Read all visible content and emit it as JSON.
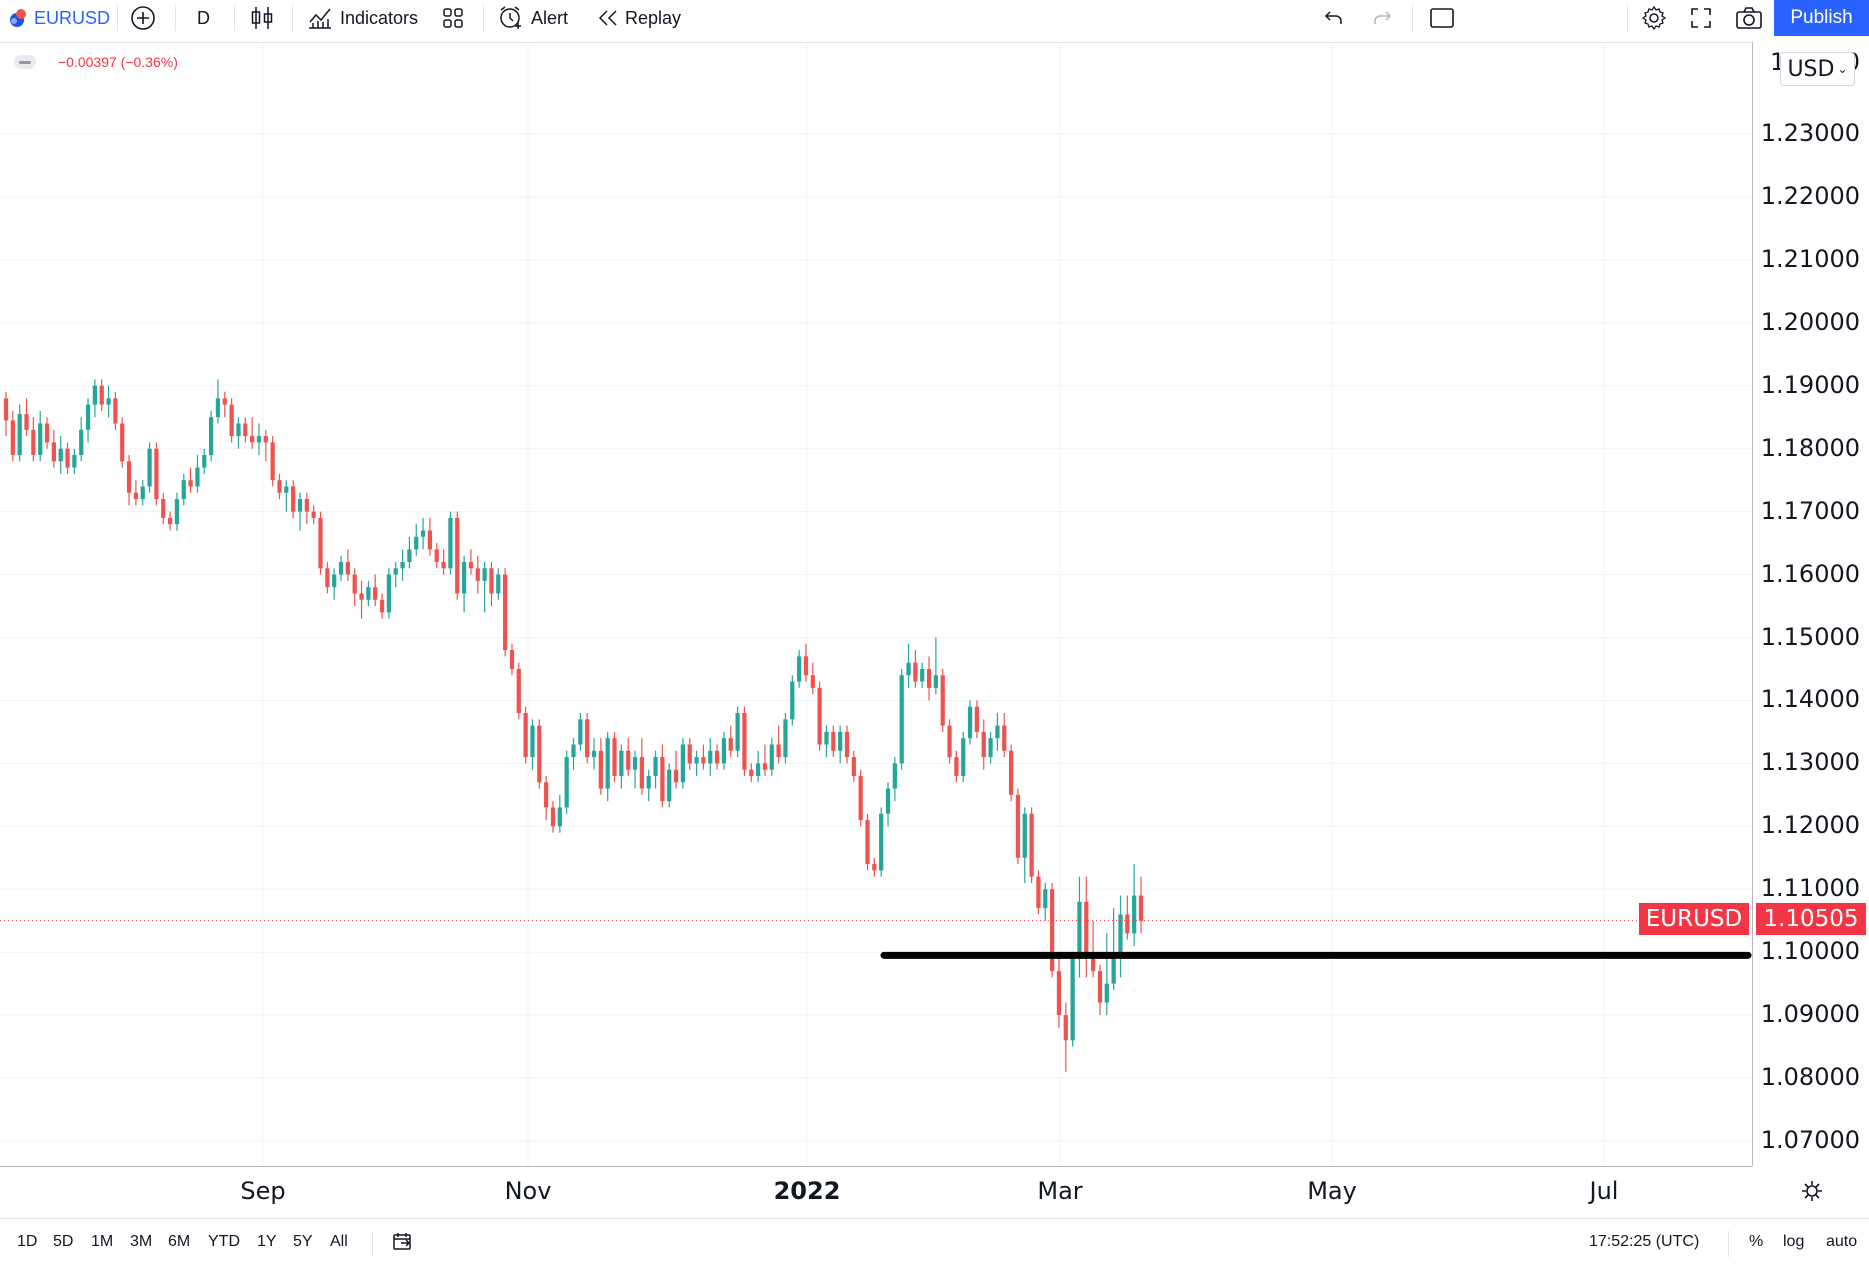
{
  "toolbar": {
    "symbol": "EURUSD",
    "interval": "D",
    "indicators_label": "Indicators",
    "alert_label": "Alert",
    "replay_label": "Replay",
    "publish_label": "Publish",
    "icons": [
      "flag-icon",
      "add-symbol-icon",
      "candles-icon",
      "indicators-icon",
      "templates-icon",
      "alert-icon",
      "replay-icon",
      "undo-icon",
      "redo-icon",
      "layout-icon",
      "settings-icon",
      "fullscreen-icon",
      "camera-icon"
    ]
  },
  "legend": {
    "change_text": "−0.00397 (−0.36%)"
  },
  "price_scale": {
    "currency": "USD",
    "labels": [
      "1.23000",
      "1.22000",
      "1.21000",
      "1.20000",
      "1.19000",
      "1.18000",
      "1.17000",
      "1.16000",
      "1.15000",
      "1.14000",
      "1.13000",
      "1.12000",
      "1.11000",
      "1.10000",
      "1.09000",
      "1.08000",
      "1.07000"
    ],
    "top_partial_left": "1",
    "top_partial_right": "0"
  },
  "last_price": {
    "symbol": "EURUSD",
    "value": "1.10505",
    "price": 1.10505
  },
  "time_axis": {
    "labels": [
      "Sep",
      "Nov",
      "2022",
      "Mar",
      "May",
      "Jul"
    ]
  },
  "bottom_bar": {
    "ranges": [
      "1D",
      "5D",
      "1M",
      "3M",
      "6M",
      "YTD",
      "1Y",
      "5Y",
      "All"
    ],
    "clock": "17:52:25 (UTC)",
    "percent_label": "%",
    "log_label": "log",
    "auto_label": "auto"
  },
  "colors": {
    "up": "#26a69a",
    "down": "#ef5350",
    "accent": "#2962ff",
    "support_line": "#000000"
  },
  "chart_data": {
    "type": "candlestick",
    "symbol": "EURUSD",
    "interval": "D",
    "ylim": [
      1.065,
      1.24
    ],
    "y_ticks": [
      1.07,
      1.08,
      1.09,
      1.1,
      1.11,
      1.12,
      1.13,
      1.14,
      1.15,
      1.16,
      1.17,
      1.18,
      1.19,
      1.2,
      1.21,
      1.22,
      1.23
    ],
    "x_labels": [
      "Sep",
      "Nov",
      "2022",
      "Mar",
      "May",
      "Jul"
    ],
    "last_price": 1.10505,
    "support_line_price": 1.0995,
    "ohlc": [
      [
        1.188,
        1.189,
        1.182,
        1.1845
      ],
      [
        1.1845,
        1.186,
        1.178,
        1.179
      ],
      [
        1.179,
        1.187,
        1.178,
        1.1855
      ],
      [
        1.1855,
        1.188,
        1.182,
        1.183
      ],
      [
        1.183,
        1.185,
        1.178,
        1.179
      ],
      [
        1.179,
        1.186,
        1.178,
        1.184
      ],
      [
        1.184,
        1.185,
        1.18,
        1.181
      ],
      [
        1.181,
        1.183,
        1.177,
        1.178
      ],
      [
        1.178,
        1.182,
        1.176,
        1.18
      ],
      [
        1.18,
        1.181,
        1.176,
        1.177
      ],
      [
        1.177,
        1.18,
        1.176,
        1.179
      ],
      [
        1.179,
        1.185,
        1.178,
        1.183
      ],
      [
        1.183,
        1.188,
        1.181,
        1.187
      ],
      [
        1.187,
        1.191,
        1.185,
        1.19
      ],
      [
        1.19,
        1.191,
        1.186,
        1.187
      ],
      [
        1.187,
        1.19,
        1.185,
        1.188
      ],
      [
        1.188,
        1.189,
        1.183,
        1.184
      ],
      [
        1.184,
        1.185,
        1.177,
        1.178
      ],
      [
        1.178,
        1.179,
        1.171,
        1.173
      ],
      [
        1.173,
        1.175,
        1.171,
        1.172
      ],
      [
        1.172,
        1.175,
        1.171,
        1.174
      ],
      [
        1.174,
        1.181,
        1.173,
        1.18
      ],
      [
        1.18,
        1.181,
        1.171,
        1.172
      ],
      [
        1.172,
        1.173,
        1.168,
        1.169
      ],
      [
        1.169,
        1.17,
        1.167,
        1.168
      ],
      [
        1.168,
        1.173,
        1.167,
        1.172
      ],
      [
        1.172,
        1.176,
        1.171,
        1.175
      ],
      [
        1.175,
        1.177,
        1.173,
        1.174
      ],
      [
        1.174,
        1.179,
        1.173,
        1.177
      ],
      [
        1.177,
        1.18,
        1.176,
        1.179
      ],
      [
        1.179,
        1.186,
        1.178,
        1.185
      ],
      [
        1.185,
        1.191,
        1.184,
        1.188
      ],
      [
        1.188,
        1.189,
        1.185,
        1.187
      ],
      [
        1.187,
        1.188,
        1.181,
        1.182
      ],
      [
        1.182,
        1.185,
        1.18,
        1.184
      ],
      [
        1.184,
        1.185,
        1.181,
        1.182
      ],
      [
        1.182,
        1.185,
        1.18,
        1.181
      ],
      [
        1.181,
        1.184,
        1.179,
        1.182
      ],
      [
        1.182,
        1.183,
        1.178,
        1.181
      ],
      [
        1.181,
        1.182,
        1.174,
        1.175
      ],
      [
        1.175,
        1.176,
        1.172,
        1.173
      ],
      [
        1.173,
        1.175,
        1.17,
        1.174
      ],
      [
        1.174,
        1.175,
        1.169,
        1.17
      ],
      [
        1.17,
        1.173,
        1.167,
        1.172
      ],
      [
        1.172,
        1.173,
        1.168,
        1.17
      ],
      [
        1.17,
        1.171,
        1.168,
        1.169
      ],
      [
        1.169,
        1.17,
        1.16,
        1.161
      ],
      [
        1.161,
        1.162,
        1.157,
        1.158
      ],
      [
        1.158,
        1.161,
        1.156,
        1.16
      ],
      [
        1.16,
        1.163,
        1.159,
        1.162
      ],
      [
        1.162,
        1.164,
        1.159,
        1.16
      ],
      [
        1.16,
        1.161,
        1.155,
        1.157
      ],
      [
        1.157,
        1.159,
        1.153,
        1.156
      ],
      [
        1.156,
        1.159,
        1.155,
        1.158
      ],
      [
        1.158,
        1.16,
        1.155,
        1.156
      ],
      [
        1.156,
        1.157,
        1.153,
        1.154
      ],
      [
        1.154,
        1.161,
        1.153,
        1.16
      ],
      [
        1.16,
        1.162,
        1.158,
        1.161
      ],
      [
        1.161,
        1.164,
        1.159,
        1.162
      ],
      [
        1.162,
        1.166,
        1.161,
        1.164
      ],
      [
        1.164,
        1.168,
        1.163,
        1.166
      ],
      [
        1.166,
        1.169,
        1.164,
        1.167
      ],
      [
        1.167,
        1.169,
        1.163,
        1.164
      ],
      [
        1.164,
        1.165,
        1.161,
        1.162
      ],
      [
        1.162,
        1.164,
        1.16,
        1.161
      ],
      [
        1.161,
        1.17,
        1.16,
        1.169
      ],
      [
        1.169,
        1.17,
        1.156,
        1.157
      ],
      [
        1.157,
        1.163,
        1.154,
        1.162
      ],
      [
        1.162,
        1.164,
        1.16,
        1.161
      ],
      [
        1.161,
        1.163,
        1.157,
        1.159
      ],
      [
        1.159,
        1.162,
        1.154,
        1.161
      ],
      [
        1.161,
        1.162,
        1.155,
        1.157
      ],
      [
        1.157,
        1.161,
        1.156,
        1.16
      ],
      [
        1.16,
        1.161,
        1.147,
        1.148
      ],
      [
        1.148,
        1.149,
        1.144,
        1.145
      ],
      [
        1.145,
        1.146,
        1.137,
        1.138
      ],
      [
        1.138,
        1.139,
        1.13,
        1.131
      ],
      [
        1.131,
        1.137,
        1.129,
        1.136
      ],
      [
        1.136,
        1.137,
        1.126,
        1.127
      ],
      [
        1.127,
        1.128,
        1.121,
        1.123
      ],
      [
        1.123,
        1.124,
        1.119,
        1.12
      ],
      [
        1.12,
        1.125,
        1.119,
        1.123
      ],
      [
        1.123,
        1.132,
        1.122,
        1.131
      ],
      [
        1.131,
        1.134,
        1.129,
        1.133
      ],
      [
        1.133,
        1.138,
        1.132,
        1.137
      ],
      [
        1.137,
        1.138,
        1.13,
        1.131
      ],
      [
        1.131,
        1.134,
        1.129,
        1.132
      ],
      [
        1.132,
        1.134,
        1.125,
        1.126
      ],
      [
        1.126,
        1.135,
        1.124,
        1.134
      ],
      [
        1.134,
        1.135,
        1.127,
        1.128
      ],
      [
        1.128,
        1.133,
        1.126,
        1.132
      ],
      [
        1.132,
        1.134,
        1.128,
        1.129
      ],
      [
        1.129,
        1.132,
        1.126,
        1.131
      ],
      [
        1.131,
        1.134,
        1.125,
        1.126
      ],
      [
        1.126,
        1.129,
        1.124,
        1.128
      ],
      [
        1.128,
        1.132,
        1.126,
        1.131
      ],
      [
        1.131,
        1.133,
        1.123,
        1.124
      ],
      [
        1.124,
        1.13,
        1.123,
        1.129
      ],
      [
        1.129,
        1.132,
        1.126,
        1.127
      ],
      [
        1.127,
        1.134,
        1.126,
        1.133
      ],
      [
        1.133,
        1.134,
        1.129,
        1.13
      ],
      [
        1.13,
        1.132,
        1.128,
        1.131
      ],
      [
        1.131,
        1.133,
        1.129,
        1.13
      ],
      [
        1.13,
        1.134,
        1.128,
        1.132
      ],
      [
        1.132,
        1.133,
        1.129,
        1.13
      ],
      [
        1.13,
        1.135,
        1.129,
        1.134
      ],
      [
        1.134,
        1.136,
        1.131,
        1.132
      ],
      [
        1.132,
        1.139,
        1.131,
        1.138
      ],
      [
        1.138,
        1.139,
        1.128,
        1.129
      ],
      [
        1.129,
        1.13,
        1.127,
        1.128
      ],
      [
        1.128,
        1.132,
        1.127,
        1.13
      ],
      [
        1.13,
        1.133,
        1.128,
        1.129
      ],
      [
        1.129,
        1.134,
        1.128,
        1.133
      ],
      [
        1.133,
        1.136,
        1.13,
        1.131
      ],
      [
        1.131,
        1.138,
        1.13,
        1.137
      ],
      [
        1.137,
        1.144,
        1.136,
        1.143
      ],
      [
        1.143,
        1.148,
        1.142,
        1.147
      ],
      [
        1.147,
        1.149,
        1.143,
        1.144
      ],
      [
        1.144,
        1.146,
        1.141,
        1.142
      ],
      [
        1.142,
        1.143,
        1.132,
        1.133
      ],
      [
        1.133,
        1.136,
        1.131,
        1.135
      ],
      [
        1.135,
        1.136,
        1.131,
        1.132
      ],
      [
        1.132,
        1.136,
        1.13,
        1.135
      ],
      [
        1.135,
        1.136,
        1.13,
        1.131
      ],
      [
        1.131,
        1.132,
        1.127,
        1.128
      ],
      [
        1.128,
        1.129,
        1.12,
        1.121
      ],
      [
        1.121,
        1.122,
        1.113,
        1.114
      ],
      [
        1.114,
        1.115,
        1.112,
        1.113
      ],
      [
        1.113,
        1.123,
        1.112,
        1.122
      ],
      [
        1.122,
        1.127,
        1.12,
        1.126
      ],
      [
        1.126,
        1.131,
        1.124,
        1.13
      ],
      [
        1.13,
        1.145,
        1.129,
        1.144
      ],
      [
        1.144,
        1.149,
        1.142,
        1.146
      ],
      [
        1.146,
        1.148,
        1.142,
        1.143
      ],
      [
        1.143,
        1.146,
        1.142,
        1.145
      ],
      [
        1.145,
        1.147,
        1.14,
        1.142
      ],
      [
        1.142,
        1.15,
        1.141,
        1.144
      ],
      [
        1.144,
        1.145,
        1.135,
        1.136
      ],
      [
        1.136,
        1.137,
        1.13,
        1.131
      ],
      [
        1.131,
        1.132,
        1.127,
        1.128
      ],
      [
        1.128,
        1.135,
        1.127,
        1.134
      ],
      [
        1.134,
        1.14,
        1.133,
        1.139
      ],
      [
        1.139,
        1.14,
        1.134,
        1.135
      ],
      [
        1.135,
        1.137,
        1.129,
        1.131
      ],
      [
        1.131,
        1.135,
        1.13,
        1.134
      ],
      [
        1.134,
        1.138,
        1.132,
        1.136
      ],
      [
        1.136,
        1.138,
        1.131,
        1.132
      ],
      [
        1.132,
        1.133,
        1.124,
        1.125
      ],
      [
        1.125,
        1.126,
        1.114,
        1.115
      ],
      [
        1.115,
        1.123,
        1.111,
        1.122
      ],
      [
        1.122,
        1.123,
        1.111,
        1.112
      ],
      [
        1.112,
        1.113,
        1.106,
        1.107
      ],
      [
        1.107,
        1.111,
        1.105,
        1.11
      ],
      [
        1.11,
        1.111,
        1.096,
        1.097
      ],
      [
        1.097,
        1.099,
        1.088,
        1.09
      ],
      [
        1.09,
        1.092,
        1.081,
        1.086
      ],
      [
        1.086,
        1.1,
        1.085,
        1.099
      ],
      [
        1.099,
        1.112,
        1.096,
        1.108
      ],
      [
        1.108,
        1.112,
        1.096,
        1.099
      ],
      [
        1.099,
        1.105,
        1.096,
        1.097
      ],
      [
        1.097,
        1.098,
        1.09,
        1.092
      ],
      [
        1.092,
        1.103,
        1.09,
        1.095
      ],
      [
        1.095,
        1.107,
        1.094,
        1.099
      ],
      [
        1.099,
        1.109,
        1.096,
        1.106
      ],
      [
        1.106,
        1.109,
        1.102,
        1.103
      ],
      [
        1.103,
        1.114,
        1.101,
        1.109
      ],
      [
        1.109,
        1.112,
        1.103,
        1.105
      ]
    ]
  }
}
